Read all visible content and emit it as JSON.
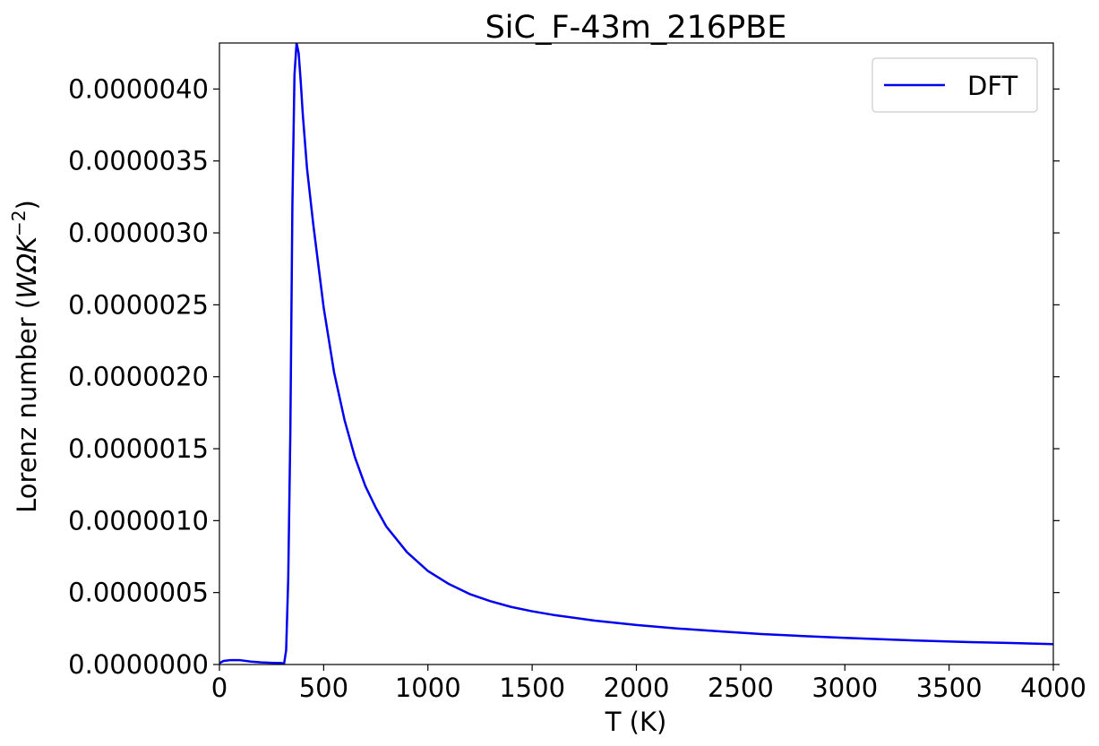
{
  "chart_data": {
    "type": "line",
    "title": "SiC_F-43m_216PBE",
    "xlabel": "T (K)",
    "ylabel": {
      "text": "Lorenz number (",
      "unit_main": "WΩK",
      "unit_exp": "−2",
      "close": ")"
    },
    "xlim": [
      0,
      4000
    ],
    "ylim": [
      0,
      4.32e-06
    ],
    "x_ticks": [
      0,
      500,
      1000,
      1500,
      2000,
      2500,
      3000,
      3500,
      4000
    ],
    "x_tick_labels": [
      "0",
      "500",
      "1000",
      "1500",
      "2000",
      "2500",
      "3000",
      "3500",
      "4000"
    ],
    "y_ticks": [
      0,
      5e-07,
      1e-06,
      1.5e-06,
      2e-06,
      2.5e-06,
      3e-06,
      3.5e-06,
      4e-06
    ],
    "y_tick_labels": [
      "0.0000000",
      "0.0000005",
      "0.0000010",
      "0.0000015",
      "0.0000020",
      "0.0000025",
      "0.0000030",
      "0.0000035",
      "0.0000040"
    ],
    "grid": false,
    "legend_position": "upper right",
    "series": [
      {
        "name": "DFT",
        "color": "#0000ee",
        "x": [
          0,
          20,
          50,
          100,
          150,
          200,
          250,
          300,
          310,
          320,
          330,
          340,
          350,
          360,
          370,
          380,
          390,
          400,
          420,
          450,
          500,
          550,
          600,
          650,
          700,
          750,
          800,
          900,
          1000,
          1100,
          1200,
          1300,
          1400,
          1500,
          1600,
          1800,
          2000,
          2200,
          2400,
          2600,
          2800,
          3000,
          3200,
          3400,
          3600,
          3800,
          4000
        ],
        "y": [
          1e-08,
          2.5e-08,
          3e-08,
          3e-08,
          2e-08,
          1.5e-08,
          1.2e-08,
          1e-08,
          5e-09,
          1e-07,
          6e-07,
          1.6e-06,
          3.2e-06,
          4.1e-06,
          4.32e-06,
          4.25e-06,
          4.05e-06,
          3.82e-06,
          3.45e-06,
          3.06e-06,
          2.48e-06,
          2.03e-06,
          1.7e-06,
          1.44e-06,
          1.24e-06,
          1.09e-06,
          9.6e-07,
          7.8e-07,
          6.5e-07,
          5.6e-07,
          4.9e-07,
          4.4e-07,
          4e-07,
          3.7e-07,
          3.45e-07,
          3.05e-07,
          2.75e-07,
          2.5e-07,
          2.3e-07,
          2.12e-07,
          1.98e-07,
          1.85e-07,
          1.74e-07,
          1.64e-07,
          1.56e-07,
          1.49e-07,
          1.42e-07
        ]
      }
    ]
  }
}
